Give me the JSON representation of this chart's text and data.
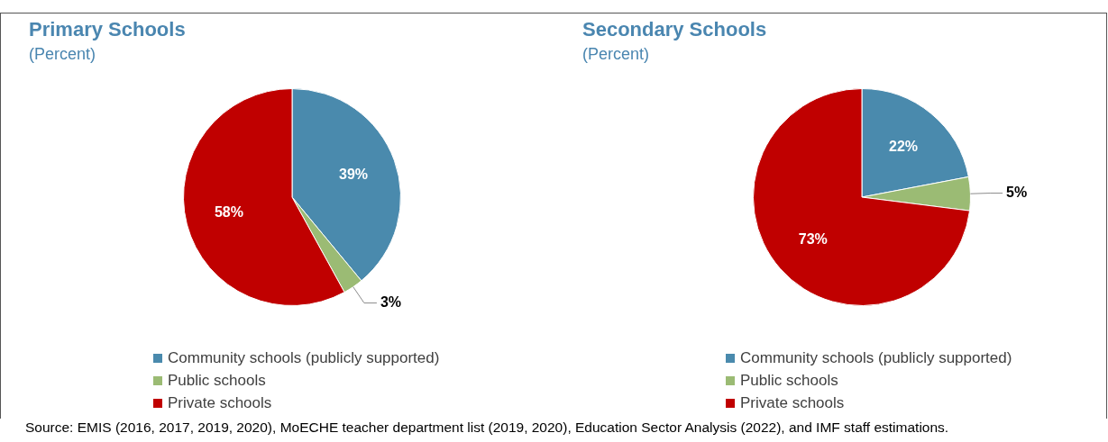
{
  "chart_data": [
    {
      "type": "pie",
      "title": "Primary Schools",
      "subtitle": "(Percent)",
      "categories": [
        "Community schools (publicly supported)",
        "Public schools",
        "Private schools"
      ],
      "values": [
        39,
        3,
        58
      ],
      "colors": [
        "#4a8aad",
        "#9bbb74",
        "#c00000"
      ],
      "value_labels": [
        "39%",
        "3%",
        "58%"
      ],
      "legend": "bottom",
      "annotations": [
        "Source: EMIS (2016, 2017, 2019, 2020), MoECHE teacher department list (2019, 2020), Education Sector Analysis (2022), and IMF staff estimations."
      ]
    },
    {
      "type": "pie",
      "title": "Secondary Schools",
      "subtitle": "(Percent)",
      "categories": [
        "Community schools (publicly supported)",
        "Public schools",
        "Private schools"
      ],
      "values": [
        22,
        5,
        73
      ],
      "colors": [
        "#4a8aad",
        "#9bbb74",
        "#c00000"
      ],
      "value_labels": [
        "22%",
        "5%",
        "73%"
      ],
      "legend": "bottom"
    }
  ]
}
